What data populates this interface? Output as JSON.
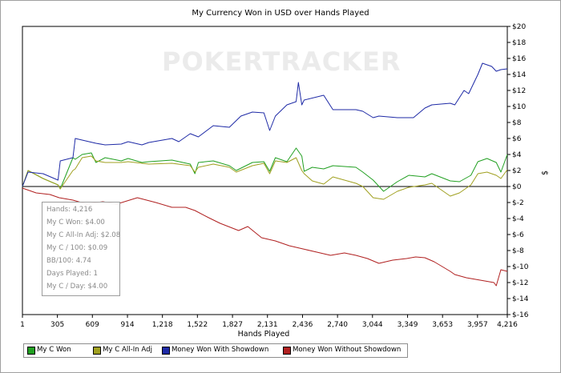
{
  "window": {
    "title": "My Currency Won in USD over Hands Played"
  },
  "watermark": {
    "text": "POKERTRACKER"
  },
  "tooltip": {
    "lines": [
      "Hands: 4,216",
      "My C Won: $4.00",
      "My C All-In Adj: $2.08",
      "My C / 100: $0.09",
      "BB/100: 4.74",
      "Days Played: 1",
      "My C / Day: $4.00"
    ]
  },
  "legend": {
    "items": [
      {
        "label": "My C Won",
        "color": "#22a022"
      },
      {
        "label": "My C All-In Adj",
        "color": "#a0a020"
      },
      {
        "label": "Money Won With Showdown",
        "color": "#1e2aa6"
      },
      {
        "label": "Money Won Without Showdown",
        "color": "#b02020"
      }
    ]
  },
  "chart_data": {
    "type": "line",
    "title": "My Currency Won in USD over Hands Played",
    "xlabel": "Hands Played",
    "ylabel": "$",
    "xlim": [
      1,
      4216
    ],
    "ylim": [
      -16,
      20
    ],
    "grid": false,
    "legend_position": "bottom",
    "x_ticks": [
      "1",
      "305",
      "609",
      "914",
      "1,218",
      "1,522",
      "1,827",
      "2,131",
      "2,436",
      "2,740",
      "3,044",
      "3,349",
      "3,653",
      "3,957",
      "4,216"
    ],
    "x_tick_values": [
      1,
      305,
      609,
      914,
      1218,
      1522,
      1827,
      2131,
      2436,
      2740,
      3044,
      3349,
      3653,
      3957,
      4216
    ],
    "y_ticks": [
      "$20",
      "$18",
      "$16",
      "$14",
      "$12",
      "$10",
      "$8",
      "$6",
      "$4",
      "$2",
      "$0",
      "$-2",
      "$-4",
      "$-6",
      "$-8",
      "$-10",
      "$-12",
      "$-14",
      "$-16"
    ],
    "y_tick_values": [
      20,
      18,
      16,
      14,
      12,
      10,
      8,
      6,
      4,
      2,
      0,
      -2,
      -4,
      -6,
      -8,
      -10,
      -12,
      -14,
      -16
    ],
    "series": [
      {
        "name": "My C Won",
        "color": "#22a022",
        "x": [
          1,
          50,
          180,
          310,
          330,
          440,
          460,
          520,
          600,
          640,
          720,
          860,
          920,
          1040,
          1100,
          1300,
          1460,
          1500,
          1530,
          1660,
          1800,
          1860,
          2000,
          2100,
          2150,
          2200,
          2300,
          2380,
          2430,
          2450,
          2520,
          2620,
          2700,
          2900,
          2960,
          3050,
          3140,
          3260,
          3360,
          3500,
          3560,
          3720,
          3800,
          3900,
          3960,
          4040,
          4120,
          4160,
          4216
        ],
        "values": [
          0,
          2.0,
          1.0,
          0.2,
          -0.3,
          3.6,
          3.4,
          4.0,
          4.2,
          3.0,
          3.6,
          3.2,
          3.5,
          3.0,
          3.1,
          3.3,
          2.8,
          1.6,
          3.0,
          3.2,
          2.6,
          2.0,
          3.0,
          3.1,
          1.9,
          3.6,
          3.1,
          4.8,
          3.8,
          1.9,
          2.4,
          2.2,
          2.6,
          2.4,
          1.8,
          0.8,
          -0.6,
          0.6,
          1.4,
          1.2,
          1.6,
          0.7,
          0.6,
          1.4,
          3.1,
          3.5,
          3.0,
          1.8,
          4.0
        ]
      },
      {
        "name": "My C All-In Adj",
        "color": "#a0a020",
        "x": [
          1,
          50,
          180,
          310,
          330,
          440,
          460,
          520,
          600,
          640,
          720,
          860,
          920,
          1040,
          1100,
          1300,
          1460,
          1500,
          1530,
          1660,
          1800,
          1860,
          2000,
          2100,
          2150,
          2200,
          2300,
          2380,
          2430,
          2450,
          2520,
          2620,
          2700,
          2900,
          2960,
          3050,
          3140,
          3260,
          3360,
          3500,
          3560,
          3720,
          3800,
          3900,
          3960,
          4040,
          4120,
          4160,
          4216
        ],
        "values": [
          0,
          2.0,
          1.0,
          0.2,
          -0.3,
          2.0,
          2.2,
          3.6,
          3.8,
          3.2,
          3.0,
          3.0,
          3.1,
          2.9,
          2.8,
          2.9,
          2.6,
          1.8,
          2.4,
          2.8,
          2.4,
          1.8,
          2.6,
          2.9,
          1.6,
          3.2,
          3.0,
          3.6,
          2.0,
          1.6,
          0.7,
          0.3,
          1.2,
          0.4,
          0.0,
          -1.4,
          -1.6,
          -0.6,
          -0.1,
          0.2,
          0.4,
          -1.2,
          -0.8,
          0.2,
          1.6,
          1.8,
          1.4,
          1.0,
          2.1
        ]
      },
      {
        "name": "Money Won With Showdown",
        "color": "#1e2aa6",
        "x": [
          1,
          50,
          180,
          310,
          330,
          440,
          460,
          520,
          640,
          720,
          860,
          920,
          1040,
          1100,
          1300,
          1360,
          1460,
          1530,
          1660,
          1800,
          1900,
          2000,
          2100,
          2150,
          2200,
          2300,
          2380,
          2400,
          2430,
          2450,
          2620,
          2700,
          2900,
          2960,
          3050,
          3100,
          3260,
          3400,
          3500,
          3560,
          3720,
          3760,
          3840,
          3880,
          3960,
          4000,
          4080,
          4120,
          4160,
          4216
        ],
        "values": [
          0,
          1.8,
          1.6,
          0.8,
          3.2,
          3.6,
          6.0,
          5.8,
          5.4,
          5.2,
          5.3,
          5.6,
          5.2,
          5.5,
          6.0,
          5.6,
          6.6,
          6.2,
          7.6,
          7.4,
          8.8,
          9.3,
          9.2,
          7.0,
          8.8,
          10.2,
          10.6,
          13.0,
          10.2,
          10.8,
          11.4,
          9.6,
          9.6,
          9.4,
          8.6,
          8.8,
          8.6,
          8.6,
          9.8,
          10.2,
          10.4,
          10.2,
          12.0,
          11.6,
          14.0,
          15.4,
          15.0,
          14.4,
          14.6,
          14.7
        ]
      },
      {
        "name": "Money Won Without Showdown",
        "color": "#b02020",
        "x": [
          1,
          120,
          240,
          320,
          440,
          560,
          700,
          820,
          1000,
          1160,
          1300,
          1420,
          1500,
          1620,
          1720,
          1880,
          1960,
          2080,
          2200,
          2320,
          2440,
          2560,
          2680,
          2800,
          2900,
          3000,
          3100,
          3220,
          3340,
          3420,
          3500,
          3580,
          3720,
          3760,
          3860,
          3940,
          4020,
          4100,
          4120,
          4160,
          4216
        ],
        "values": [
          -0.2,
          -0.8,
          -1.0,
          -1.4,
          -1.7,
          -2.2,
          -1.9,
          -2.2,
          -1.4,
          -2.0,
          -2.6,
          -2.6,
          -3.0,
          -3.9,
          -4.6,
          -5.5,
          -5.0,
          -6.4,
          -6.8,
          -7.4,
          -7.8,
          -8.2,
          -8.6,
          -8.3,
          -8.6,
          -9.0,
          -9.6,
          -9.2,
          -9.0,
          -8.8,
          -8.9,
          -9.4,
          -10.6,
          -11.0,
          -11.4,
          -11.6,
          -11.8,
          -12.0,
          -12.4,
          -10.4,
          -10.6
        ]
      }
    ]
  }
}
